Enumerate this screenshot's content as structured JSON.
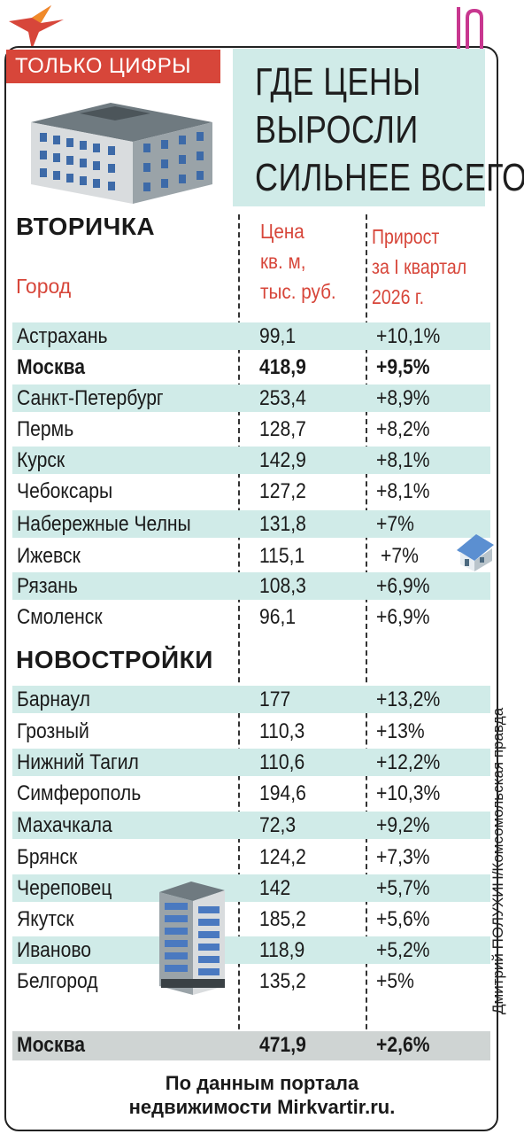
{
  "tag": "ТОЛЬКО ЦИФРЫ",
  "headline": [
    "ГДЕ ЦЕНЫ",
    "ВЫРОСЛИ",
    "СИЛЬНЕЕ ВСЕГО"
  ],
  "columns": {
    "city": "Город",
    "price": "Цена\nкв. м,\nтыс. руб.",
    "growth": "Прирост\nза I квартал\n2026 г."
  },
  "secondary": {
    "title": "ВТОРИЧКА",
    "rows": [
      {
        "city": "Астрахань",
        "price": "99,1",
        "growth": "+10,1%"
      },
      {
        "city": "Москва",
        "price": "418,9",
        "growth": "+9,5%"
      },
      {
        "city": "Санкт-Петербург",
        "price": "253,4",
        "growth": "+8,9%"
      },
      {
        "city": "Пермь",
        "price": "128,7",
        "growth": "+8,2%"
      },
      {
        "city": "Курск",
        "price": "142,9",
        "growth": "+8,1%"
      },
      {
        "city": "Чебоксары",
        "price": "127,2",
        "growth": "+8,1%"
      },
      {
        "city": "Набережные Челны",
        "price": "131,8",
        "growth": "+7%"
      },
      {
        "city": "Ижевск",
        "price": "115,1",
        "growth": "+7%"
      },
      {
        "city": "Рязань",
        "price": "108,3",
        "growth": "+6,9%"
      },
      {
        "city": "Смоленск",
        "price": "96,1",
        "growth": "+6,9%"
      }
    ]
  },
  "new_builds": {
    "title": "НОВОСТРОЙКИ",
    "rows": [
      {
        "city": "Барнаул",
        "price": "177",
        "growth": "+13,2%"
      },
      {
        "city": "Грозный",
        "price": "110,3",
        "growth": "+13%"
      },
      {
        "city": "Нижний Тагил",
        "price": "110,6",
        "growth": "+12,2%"
      },
      {
        "city": "Симферополь",
        "price": "194,6",
        "growth": "+10,3%"
      },
      {
        "city": "Махачкала",
        "price": "72,3",
        "growth": "+9,2%"
      },
      {
        "city": "Брянск",
        "price": "124,2",
        "growth": "+7,3%"
      },
      {
        "city": "Череповец",
        "price": "142",
        "growth": "+5,7%"
      },
      {
        "city": "Якутск",
        "price": "185,2",
        "growth": "+5,6%"
      },
      {
        "city": "Иваново",
        "price": "118,9",
        "growth": "+5,2%"
      },
      {
        "city": "Белгород",
        "price": "135,2",
        "growth": "+5%"
      }
    ],
    "total": {
      "city": "Москва",
      "price": "471,9",
      "growth": "+2,6%"
    }
  },
  "credit": "Дмитрий ПОЛУХИН/Комсомольская правда",
  "source": [
    "По данным портала",
    "недвижимости Mirkvartir.ru."
  ]
}
